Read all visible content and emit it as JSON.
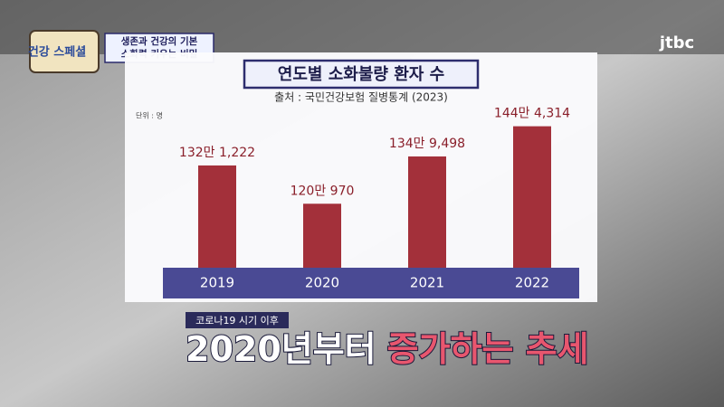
{
  "header": {
    "logo": "건강 스페셜",
    "topic_line1": "생존과 건강의 기본",
    "topic_line2": "소화력 키우는 비밀",
    "channel": "jtbc"
  },
  "chart_data": {
    "type": "bar",
    "title": "연도별 소화불량 환자 수",
    "subtitle": "출처 : 국민건강보험 질병통계 (2023)",
    "unit_label": "단위 : 명",
    "categories": [
      "2019",
      "2020",
      "2021",
      "2022"
    ],
    "values": [
      1321222,
      1200970,
      1349498,
      1444314
    ],
    "value_labels": [
      "132만 1,222",
      "120만 970",
      "134만 9,498",
      "144만 4,314"
    ],
    "color": "#a3303a",
    "ylim": [
      1000000,
      1500000
    ]
  },
  "caption": {
    "tag": "코로나19 시기 이후",
    "line_white": "2020년부터",
    "line_red": "증가하는 추세"
  }
}
